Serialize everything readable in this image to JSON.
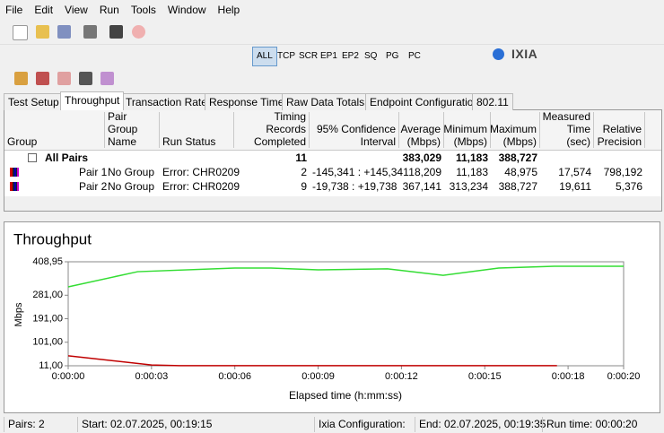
{
  "menu": [
    "File",
    "Edit",
    "View",
    "Run",
    "Tools",
    "Window",
    "Help"
  ],
  "toolbar": {
    "filters": [
      "ALL",
      "TCP",
      "SCR",
      "EP1",
      "EP2",
      "SQ",
      "PG",
      "PC"
    ],
    "logo": "IXIA"
  },
  "tabs": [
    "Test Setup",
    "Throughput",
    "Transaction Rate",
    "Response Time",
    "Raw Data Totals",
    "Endpoint Configuration",
    "802.11"
  ],
  "table": {
    "columns": [
      "Group",
      "Pair Group Name",
      "Run Status",
      "Timing Records Completed",
      "95% Confidence Interval",
      "Average (Mbps)",
      "Minimum (Mbps)",
      "Maximum (Mbps)",
      "Measured Time (sec)",
      "Relative Precision"
    ],
    "rows": [
      [
        "All Pairs",
        null,
        null,
        "11",
        null,
        "383,029",
        "11,183",
        "388,727",
        null,
        null
      ],
      [
        "Pair 1",
        "No Group",
        "Error:  CHR0209",
        "2",
        "-145,341 : +145,341",
        "18,209",
        "11,183",
        "48,975",
        "17,574",
        "798,192"
      ],
      [
        "Pair 2",
        "No Group",
        "Error:  CHR0209",
        "9",
        "-19,738 : +19,738",
        "367,141",
        "313,234",
        "388,727",
        "19,611",
        "5,376"
      ]
    ]
  },
  "chart_data": {
    "type": "line",
    "title": "Throughput",
    "y_label": "Mbps",
    "x_label": "Elapsed time (h:mm:ss)",
    "xlim": [
      0,
      20
    ],
    "xticks": [
      {
        "value": 0,
        "label": "0:00:00"
      },
      {
        "value": 3,
        "label": "0:00:03"
      },
      {
        "value": 6,
        "label": "0:00:06"
      },
      {
        "value": 9,
        "label": "0:00:09"
      },
      {
        "value": 12,
        "label": "0:00:12"
      },
      {
        "value": 15,
        "label": "0:00:15"
      },
      {
        "value": 18,
        "label": "0:00:18"
      },
      {
        "value": 20,
        "label": "0:00:20"
      }
    ],
    "ylim": [
      11,
      408.95
    ],
    "yticks": [
      {
        "value": 11,
        "label": "11,00"
      },
      {
        "value": 101,
        "label": "101,00"
      },
      {
        "value": 191,
        "label": "191,00"
      },
      {
        "value": 281,
        "label": "281,00"
      },
      {
        "value": 408.95,
        "label": "408,95"
      }
    ],
    "grid": false,
    "series": [
      {
        "color": "#c00000",
        "x": [
          0,
          3,
          4,
          8,
          12,
          17.6
        ],
        "values": [
          49,
          14,
          11.5,
          11.3,
          11.3,
          11.3
        ]
      },
      {
        "color": "#33dd33",
        "x": [
          0,
          2.5,
          6,
          7.3,
          9,
          11.5,
          13.5,
          15.5,
          17.5,
          20
        ],
        "values": [
          313,
          371,
          385,
          385,
          378,
          382,
          357,
          385,
          392,
          392
        ]
      }
    ]
  },
  "status": [
    "Pairs: 2",
    "Start: 02.07.2025, 00:19:15",
    "Ixia Configuration:",
    "End: 02.07.2025, 00:19:35",
    "Run time: 00:00:20"
  ]
}
